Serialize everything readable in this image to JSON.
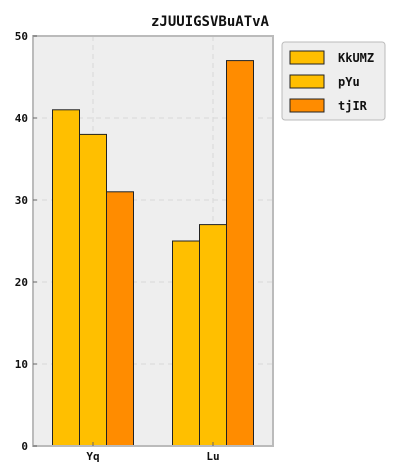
{
  "chart_data": {
    "type": "bar",
    "title": "zJUUIGSVBuATvA",
    "xlabel": "",
    "ylabel": "",
    "categories": [
      "Yq",
      "Lu"
    ],
    "series": [
      {
        "name": "KkUMZ",
        "values": [
          41,
          25
        ],
        "color": "#FFBF00"
      },
      {
        "name": "pYu",
        "values": [
          38,
          27
        ],
        "color": "#FFBF00"
      },
      {
        "name": "tjIR",
        "values": [
          31,
          47
        ],
        "color": "#FF8C00"
      }
    ],
    "ylim": [
      0,
      50
    ],
    "yticks": [
      0,
      10,
      20,
      30,
      40,
      50
    ],
    "grid": true,
    "legend_position": "top-right-outside",
    "colors": {
      "plot_background": "#EEEEEE",
      "grid": "#D8D8D8",
      "axis": "#BBBBBB",
      "bar_edge": "#222222"
    }
  }
}
